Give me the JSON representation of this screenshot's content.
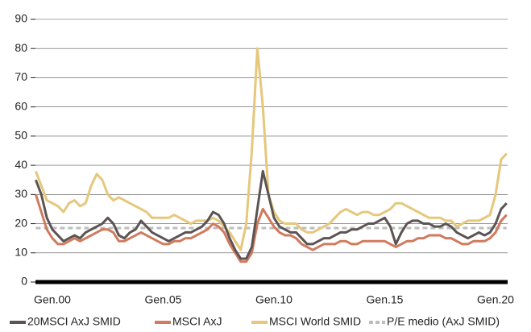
{
  "chart_data": {
    "type": "line",
    "categories": [
      null,
      null,
      null,
      "Gen.00",
      null,
      null,
      null,
      null,
      null,
      null,
      null,
      null,
      null,
      null,
      null,
      null,
      null,
      null,
      null,
      null,
      null,
      null,
      null,
      "Gen.05",
      null,
      null,
      null,
      null,
      null,
      null,
      null,
      null,
      null,
      null,
      null,
      null,
      null,
      null,
      null,
      null,
      null,
      null,
      null,
      "Gen.10",
      null,
      null,
      null,
      null,
      null,
      null,
      null,
      null,
      null,
      null,
      null,
      null,
      null,
      null,
      null,
      null,
      null,
      null,
      null,
      "Gen.15",
      null,
      null,
      null,
      null,
      null,
      null,
      null,
      null,
      null,
      null,
      null,
      null,
      null,
      null,
      null,
      null,
      null,
      null,
      null,
      "Gen.20",
      null,
      null
    ],
    "series": [
      {
        "name": "20MSCI AxJ SMID",
        "color": "#5b5452",
        "values": [
          35,
          30,
          22,
          18,
          16,
          14,
          15,
          16,
          15,
          17,
          18,
          19,
          20,
          22,
          20,
          16,
          15,
          17,
          18,
          21,
          19,
          17,
          16,
          15,
          14,
          15,
          16,
          17,
          17,
          18,
          19,
          21,
          24,
          23,
          20,
          15,
          11,
          8,
          8,
          12,
          25,
          38,
          30,
          22,
          19,
          18,
          17,
          17,
          15,
          13,
          13,
          14,
          15,
          15,
          16,
          17,
          17,
          18,
          18,
          19,
          20,
          20,
          21,
          22,
          19,
          13,
          17,
          20,
          21,
          21,
          20,
          20,
          19,
          19,
          20,
          19,
          17,
          16,
          15,
          16,
          17,
          16,
          17,
          20,
          25,
          27
        ]
      },
      {
        "name": "MSCI AxJ",
        "color": "#d07a5e",
        "values": [
          30,
          24,
          18,
          15,
          13,
          13,
          14,
          15,
          14,
          15,
          16,
          17,
          18,
          18,
          17,
          14,
          14,
          15,
          16,
          17,
          16,
          15,
          14,
          13,
          13,
          14,
          14,
          15,
          15,
          16,
          17,
          18,
          20,
          19,
          17,
          13,
          10,
          7,
          7,
          10,
          20,
          25,
          22,
          19,
          17,
          16,
          16,
          15,
          13,
          12,
          11,
          12,
          13,
          13,
          13,
          14,
          14,
          13,
          13,
          14,
          14,
          14,
          14,
          14,
          13,
          12,
          13,
          14,
          14,
          15,
          15,
          16,
          16,
          16,
          15,
          15,
          14,
          13,
          13,
          14,
          14,
          14,
          15,
          17,
          21,
          23
        ]
      },
      {
        "name": "MSCI World SMID",
        "color": "#e6c77b",
        "values": [
          38,
          33,
          28,
          27,
          26,
          24,
          27,
          28,
          26,
          27,
          33,
          37,
          35,
          30,
          28,
          29,
          28,
          27,
          26,
          25,
          24,
          22,
          22,
          22,
          22,
          23,
          22,
          21,
          20,
          21,
          21,
          21,
          22,
          21,
          19,
          17,
          14,
          11,
          20,
          45,
          80,
          60,
          30,
          24,
          21,
          20,
          20,
          20,
          18,
          17,
          17,
          18,
          19,
          20,
          22,
          24,
          25,
          24,
          23,
          24,
          24,
          23,
          23,
          24,
          25,
          27,
          27,
          26,
          25,
          24,
          23,
          22,
          22,
          22,
          21,
          21,
          19,
          20,
          21,
          21,
          21,
          22,
          23,
          30,
          42,
          44
        ]
      },
      {
        "name": "P/E medio (AxJ SMID)",
        "color": "#bdbdbd",
        "dash": true,
        "values": [
          18.5,
          18.5,
          18.5,
          18.5,
          18.5,
          18.5,
          18.5,
          18.5,
          18.5,
          18.5,
          18.5,
          18.5,
          18.5,
          18.5,
          18.5,
          18.5,
          18.5,
          18.5,
          18.5,
          18.5,
          18.5,
          18.5,
          18.5,
          18.5,
          18.5,
          18.5,
          18.5,
          18.5,
          18.5,
          18.5,
          18.5,
          18.5,
          18.5,
          18.5,
          18.5,
          18.5,
          18.5,
          18.5,
          18.5,
          18.5,
          18.5,
          18.5,
          18.5,
          18.5,
          18.5,
          18.5,
          18.5,
          18.5,
          18.5,
          18.5,
          18.5,
          18.5,
          18.5,
          18.5,
          18.5,
          18.5,
          18.5,
          18.5,
          18.5,
          18.5,
          18.5,
          18.5,
          18.5,
          18.5,
          18.5,
          18.5,
          18.5,
          18.5,
          18.5,
          18.5,
          18.5,
          18.5,
          18.5,
          18.5,
          18.5,
          18.5,
          18.5,
          18.5,
          18.5,
          18.5,
          18.5,
          18.5,
          18.5,
          18.5,
          18.5,
          18.5
        ]
      }
    ],
    "ylim": [
      0,
      90
    ],
    "yticks": [
      0,
      10,
      20,
      30,
      40,
      50,
      60,
      70,
      80,
      90
    ],
    "grid": true,
    "legend": "bottom"
  }
}
